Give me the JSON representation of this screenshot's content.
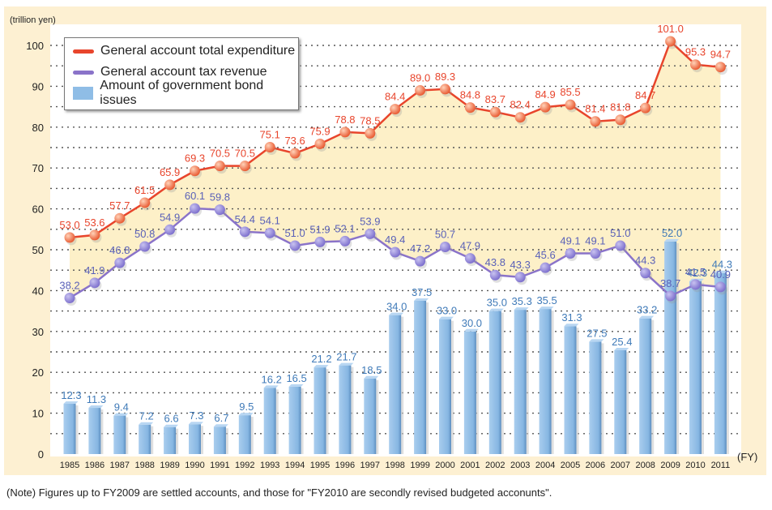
{
  "chart_data": {
    "type": "bar+line",
    "title": "",
    "ylabel": "(trillion yen)",
    "xlabel": "(FY)",
    "ylim": [
      0,
      100
    ],
    "yticks": [
      0,
      10,
      20,
      30,
      40,
      50,
      60,
      70,
      80,
      90,
      100
    ],
    "grid": true,
    "legend_position": "top-left",
    "categories": [
      "1985",
      "1986",
      "1987",
      "1988",
      "1989",
      "1990",
      "1991",
      "1992",
      "1993",
      "1994",
      "1995",
      "1996",
      "1997",
      "1998",
      "1999",
      "2000",
      "2001",
      "2002",
      "2003",
      "2004",
      "2005",
      "2006",
      "2007",
      "2008",
      "2009",
      "2010",
      "2011"
    ],
    "series": [
      {
        "name": "General account total expenditure",
        "type": "line",
        "color": "#e8452c",
        "values": [
          53.0,
          53.6,
          57.7,
          61.5,
          65.9,
          69.3,
          70.5,
          70.5,
          75.1,
          73.6,
          75.9,
          78.8,
          78.5,
          84.4,
          89.0,
          89.3,
          84.8,
          83.7,
          82.4,
          84.9,
          85.5,
          81.4,
          81.8,
          84.7,
          101.0,
          95.3,
          94.7
        ],
        "labels": [
          "53.0",
          "53.6",
          "57.7",
          "61.5",
          "65.9",
          "69.3",
          "70.5",
          "70.5",
          "75.1",
          "73.6",
          "75.9",
          "78.8",
          "78.5",
          "84.4",
          "89.0",
          "89.3",
          "84.8",
          "83.7",
          "82.4",
          "84.9",
          "85.5",
          "81.4",
          "81.8",
          "84.7",
          "101.0",
          "95.3",
          "94.7"
        ]
      },
      {
        "name": "General account tax revenue",
        "type": "line",
        "color": "#8a73c9",
        "values": [
          38.2,
          41.9,
          46.8,
          50.8,
          54.9,
          60.1,
          59.8,
          54.4,
          54.1,
          51.0,
          51.9,
          52.1,
          53.9,
          49.4,
          47.2,
          50.7,
          47.9,
          43.8,
          43.3,
          45.6,
          49.1,
          49.1,
          51.0,
          44.3,
          38.7,
          41.5,
          40.9
        ],
        "labels": [
          "38.2",
          "41.9",
          "46.8",
          "50.8",
          "54.9",
          "60.1",
          "59.8",
          "54.4",
          "54.1",
          "51.0",
          "51.9",
          "52.1",
          "53.9",
          "49.4",
          "47.2",
          "50.7",
          "47.9",
          "43.8",
          "43.3",
          "45.6",
          "49.1",
          "49.1",
          "51.0",
          "44.3",
          "38.7",
          "41.5",
          "40.9"
        ]
      },
      {
        "name": "Amount of government bond issues",
        "type": "bar",
        "color": "#8fbde6",
        "values": [
          12.3,
          11.3,
          9.4,
          7.2,
          6.6,
          7.3,
          6.7,
          9.5,
          16.2,
          16.5,
          21.2,
          21.7,
          18.5,
          34.0,
          37.5,
          33.0,
          30.0,
          35.0,
          35.3,
          35.5,
          31.3,
          27.5,
          25.4,
          33.2,
          52.0,
          42.3,
          44.3
        ],
        "labels": [
          "12.3",
          "11.3",
          "9.4",
          "7.2",
          "6.6",
          "7.3",
          "6.7",
          "9.5",
          "16.2",
          "16.5",
          "21.2",
          "21.7",
          "18.5",
          "34.0",
          "37.5",
          "33.0",
          "30.0",
          "35.0",
          "35.3",
          "35.5",
          "31.3",
          "27.5",
          "25.4",
          "33.2",
          "52.0",
          "42.3",
          "44.3"
        ]
      }
    ]
  },
  "legend": {
    "items": [
      {
        "label": "General account total expenditure",
        "color": "#e8452c"
      },
      {
        "label": "General account tax revenue",
        "color": "#8a73c9"
      },
      {
        "label": "Amount of government bond issues",
        "color": "#8fbde6"
      }
    ]
  },
  "note": "(Note) Figures up to FY2009 are settled accounts, and those for \"FY2010 are secondly revised budgeted acconunts\"."
}
